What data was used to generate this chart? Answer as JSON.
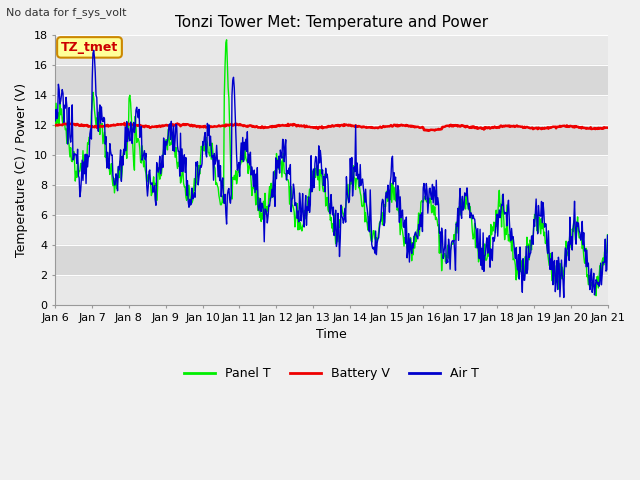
{
  "title": "Tonzi Tower Met: Temperature and Power",
  "no_data_text": "No data for f_sys_volt",
  "annotation_text": "TZ_tmet",
  "xlabel": "Time",
  "ylabel": "Temperature (C) / Power (V)",
  "ylim": [
    0,
    18
  ],
  "xlim": [
    0,
    15
  ],
  "xtick_labels": [
    "Jan 6",
    "Jan 7",
    "Jan 8",
    "Jan 9",
    "Jan 10",
    "Jan 11",
    "Jan 12",
    "Jan 13",
    "Jan 14",
    "Jan 15",
    "Jan 16",
    "Jan 17",
    "Jan 18",
    "Jan 19",
    "Jan 20",
    "Jan 21"
  ],
  "ytick_vals": [
    0,
    2,
    4,
    6,
    8,
    10,
    12,
    14,
    16,
    18
  ],
  "plot_bg_color": "#d8d8d8",
  "stripe_color": "#e8e8e8",
  "panel_t_color": "#00ee00",
  "battery_v_color": "#ee0000",
  "air_t_color": "#0000cc",
  "legend_labels": [
    "Panel T",
    "Battery V",
    "Air T"
  ],
  "fig_bg_color": "#f0f0f0",
  "title_fontsize": 11,
  "label_fontsize": 9,
  "tick_fontsize": 8,
  "annot_fontsize": 9
}
